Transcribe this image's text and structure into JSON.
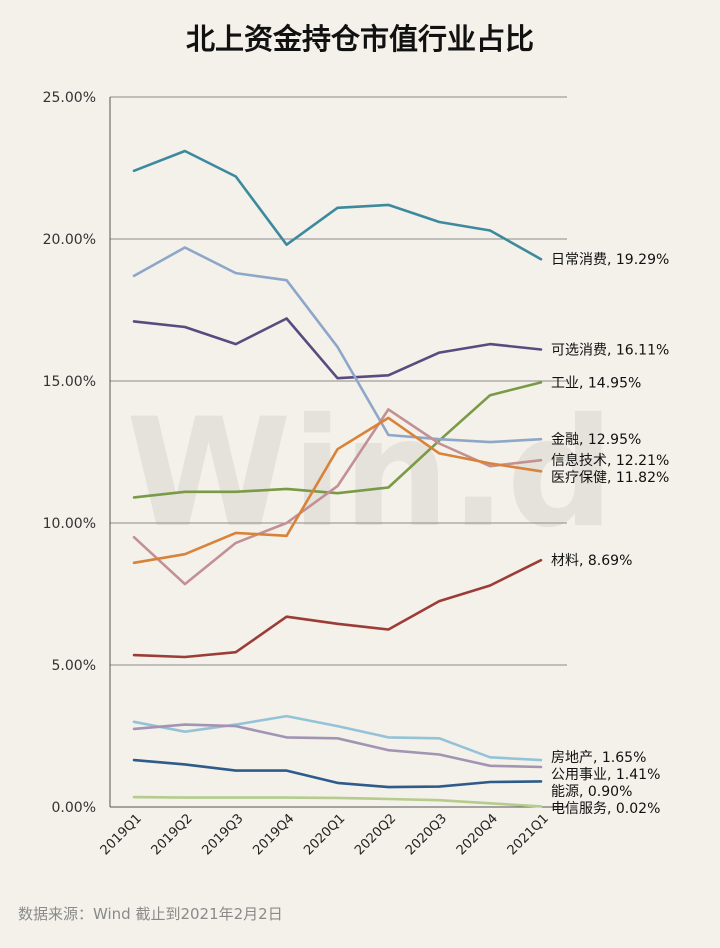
{
  "chart_data": {
    "type": "line",
    "title": "北上资金持仓市值行业占比",
    "categories": [
      "2019Q1",
      "2019Q2",
      "2019Q3",
      "2019Q4",
      "2020Q1",
      "2020Q2",
      "2020Q3",
      "2020Q4",
      "2021Q1"
    ],
    "y_ticks": [
      "0.00%",
      "5.00%",
      "10.00%",
      "15.00%",
      "20.00%",
      "25.00%"
    ],
    "ylim": [
      0,
      25
    ],
    "grid": true,
    "watermark": "Win.d",
    "series": [
      {
        "name": "日常消费",
        "end_label": "日常消费, 19.29%",
        "color": "#3d8a9e",
        "values": [
          22.4,
          23.1,
          22.2,
          19.8,
          21.1,
          21.2,
          20.6,
          20.3,
          19.29
        ]
      },
      {
        "name": "可选消费",
        "end_label": "可选消费, 16.11%",
        "color": "#5b4a7f",
        "values": [
          17.1,
          16.9,
          16.3,
          17.2,
          15.1,
          15.2,
          16.0,
          16.3,
          16.11
        ]
      },
      {
        "name": "工业",
        "end_label": "工业, 14.95%",
        "color": "#7a9a46",
        "values": [
          10.9,
          11.1,
          11.1,
          11.2,
          11.05,
          11.25,
          12.9,
          14.5,
          14.95
        ]
      },
      {
        "name": "金融",
        "end_label": "金融, 12.95%",
        "color": "#8ea7c8",
        "values": [
          18.7,
          19.7,
          18.8,
          18.55,
          16.2,
          13.1,
          12.95,
          12.85,
          12.95
        ]
      },
      {
        "name": "信息技术",
        "end_label": "信息技术, 12.21%",
        "color": "#c39094",
        "values": [
          9.5,
          7.85,
          9.3,
          10.0,
          11.3,
          14.0,
          12.8,
          12.0,
          12.21
        ]
      },
      {
        "name": "医疗保健",
        "end_label": "医疗保健, 11.82%",
        "color": "#d9823a",
        "values": [
          8.6,
          8.9,
          9.65,
          9.55,
          12.6,
          13.7,
          12.45,
          12.1,
          11.82
        ]
      },
      {
        "name": "材料",
        "end_label": "材料, 8.69%",
        "color": "#9c3c36",
        "values": [
          5.35,
          5.28,
          5.45,
          6.7,
          6.45,
          6.25,
          7.25,
          7.8,
          8.69
        ]
      },
      {
        "name": "房地产",
        "end_label": "房地产, 1.65%",
        "color": "#94c3d8",
        "values": [
          3.0,
          2.65,
          2.9,
          3.2,
          2.85,
          2.45,
          2.42,
          1.75,
          1.65
        ]
      },
      {
        "name": "公用事业",
        "end_label": "公用事业, 1.41%",
        "color": "#a394b3",
        "values": [
          2.75,
          2.9,
          2.85,
          2.45,
          2.42,
          2.0,
          1.85,
          1.45,
          1.41
        ]
      },
      {
        "name": "能源",
        "end_label": "能源, 0.90%",
        "color": "#2e5b8a",
        "values": [
          1.65,
          1.5,
          1.28,
          1.28,
          0.85,
          0.7,
          0.72,
          0.88,
          0.9
        ]
      },
      {
        "name": "电信服务",
        "end_label": "电信服务, 0.02%",
        "color": "#b5cc8e",
        "values": [
          0.35,
          0.33,
          0.33,
          0.33,
          0.32,
          0.28,
          0.24,
          0.13,
          0.02
        ]
      }
    ]
  },
  "footer": {
    "source": "数据来源：Wind    截止到2021年2月2日"
  }
}
